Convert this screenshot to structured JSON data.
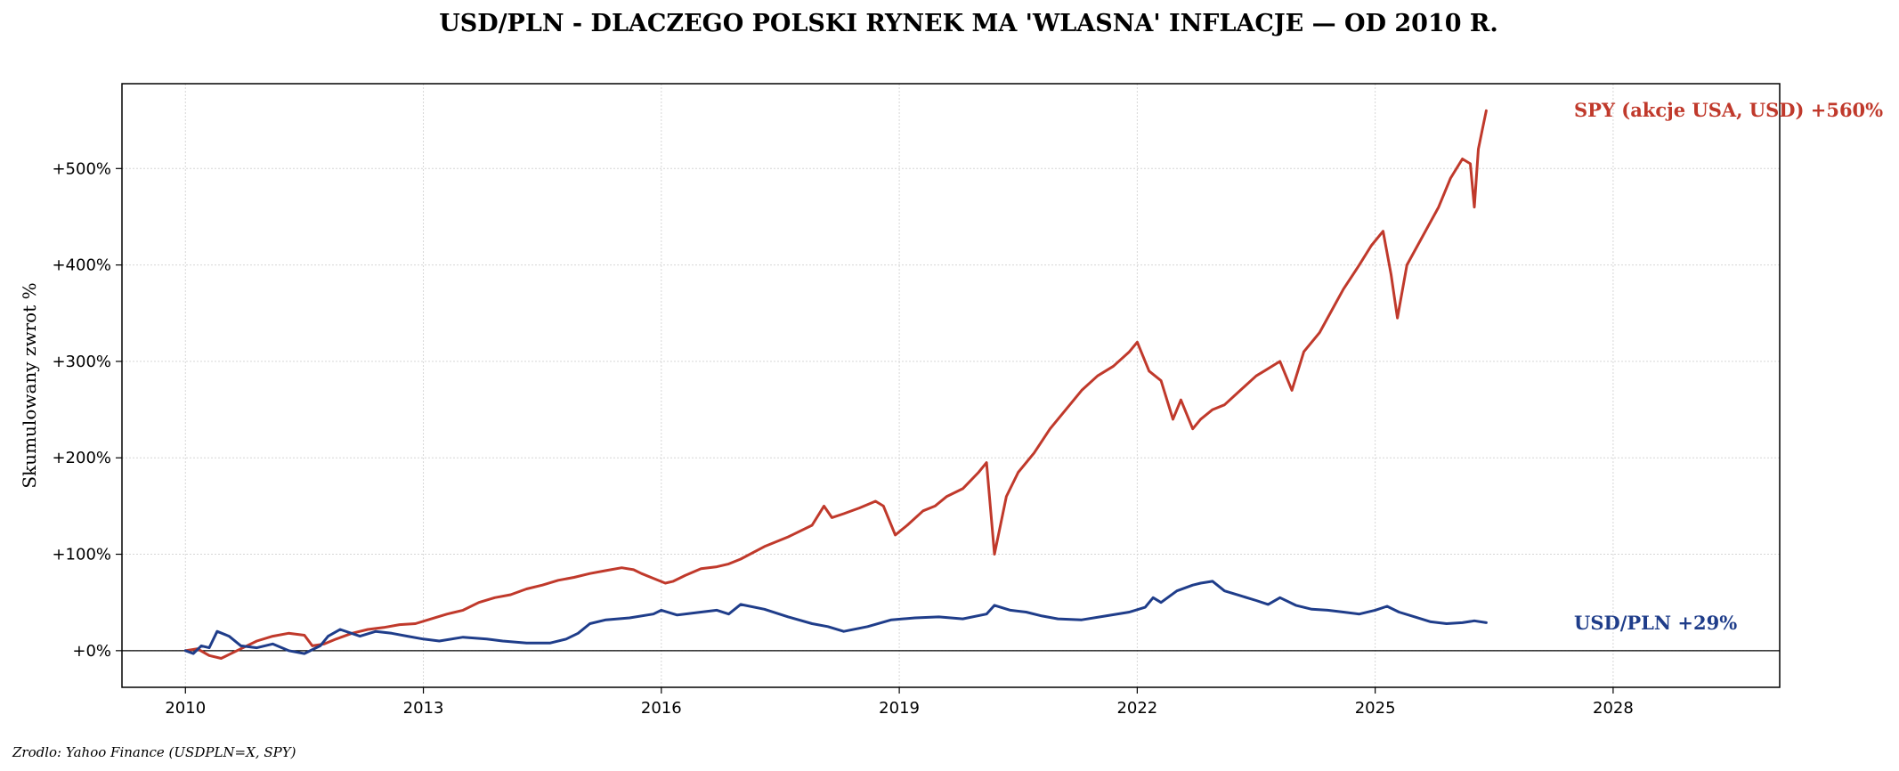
{
  "chart_data": {
    "type": "line",
    "title": "USD/PLN - DLACZEGO POLSKI RYNEK MA 'WLASNA' INFLACJE — OD 2010 R.",
    "ylabel": "Skumulowany zwrot %",
    "xlabel": "",
    "xlim": [
      2009.2,
      2030.1
    ],
    "ylim": [
      -38,
      588
    ],
    "x_ticks": [
      2010,
      2013,
      2016,
      2019,
      2022,
      2025,
      2028
    ],
    "x_tick_labels": [
      "2010",
      "2013",
      "2016",
      "2019",
      "2022",
      "2025",
      "2028"
    ],
    "y_ticks": [
      0,
      100,
      200,
      300,
      400,
      500
    ],
    "y_tick_labels": [
      "+0%",
      "+100%",
      "+200%",
      "+300%",
      "+400%",
      "+500%"
    ],
    "grid": true,
    "zero_line": true,
    "series": [
      {
        "label": "SPY (akcje USA, USD)  +560%",
        "color": "#c0392b",
        "x": [
          2010.0,
          2010.15,
          2010.3,
          2010.45,
          2010.55,
          2010.7,
          2010.9,
          2011.1,
          2011.3,
          2011.5,
          2011.6,
          2011.75,
          2011.9,
          2012.1,
          2012.3,
          2012.5,
          2012.7,
          2012.9,
          2013.1,
          2013.3,
          2013.5,
          2013.7,
          2013.9,
          2014.1,
          2014.3,
          2014.5,
          2014.7,
          2014.9,
          2015.1,
          2015.3,
          2015.5,
          2015.65,
          2015.75,
          2015.9,
          2016.05,
          2016.15,
          2016.3,
          2016.5,
          2016.7,
          2016.85,
          2017.0,
          2017.3,
          2017.6,
          2017.9,
          2018.05,
          2018.15,
          2018.3,
          2018.5,
          2018.7,
          2018.8,
          2018.95,
          2019.1,
          2019.3,
          2019.45,
          2019.6,
          2019.8,
          2020.0,
          2020.1,
          2020.2,
          2020.35,
          2020.5,
          2020.7,
          2020.9,
          2021.1,
          2021.3,
          2021.5,
          2021.7,
          2021.9,
          2022.0,
          2022.15,
          2022.3,
          2022.45,
          2022.55,
          2022.7,
          2022.8,
          2022.95,
          2023.1,
          2023.3,
          2023.5,
          2023.6,
          2023.8,
          2023.95,
          2024.1,
          2024.3,
          2024.5,
          2024.6,
          2024.8,
          2024.95,
          2025.1,
          2025.2,
          2025.28,
          2025.4,
          2025.6,
          2025.8,
          2025.95,
          2026.1,
          2026.2,
          2026.25,
          2026.3,
          2026.35,
          2026.4
        ],
        "y": [
          0,
          2,
          -5,
          -8,
          -4,
          2,
          10,
          15,
          18,
          16,
          5,
          7,
          12,
          18,
          22,
          24,
          27,
          28,
          33,
          38,
          42,
          50,
          55,
          58,
          64,
          68,
          73,
          76,
          80,
          83,
          86,
          84,
          80,
          75,
          70,
          72,
          78,
          85,
          87,
          90,
          95,
          108,
          118,
          130,
          150,
          138,
          142,
          148,
          155,
          150,
          120,
          130,
          145,
          150,
          160,
          168,
          185,
          195,
          100,
          160,
          185,
          205,
          230,
          250,
          270,
          285,
          295,
          310,
          320,
          290,
          280,
          240,
          260,
          230,
          240,
          250,
          255,
          270,
          285,
          290,
          300,
          270,
          310,
          330,
          360,
          375,
          400,
          420,
          435,
          390,
          345,
          400,
          430,
          460,
          490,
          510,
          505,
          460,
          520,
          540,
          560
        ]
      },
      {
        "label": "USD/PLN  +29%",
        "color": "#1f3d8a",
        "x": [
          2010.0,
          2010.1,
          2010.2,
          2010.3,
          2010.4,
          2010.55,
          2010.7,
          2010.9,
          2011.1,
          2011.3,
          2011.5,
          2011.7,
          2011.8,
          2011.95,
          2012.2,
          2012.4,
          2012.6,
          2012.8,
          2013.0,
          2013.2,
          2013.5,
          2013.8,
          2014.0,
          2014.3,
          2014.6,
          2014.8,
          2014.95,
          2015.1,
          2015.3,
          2015.6,
          2015.9,
          2016.0,
          2016.2,
          2016.5,
          2016.7,
          2016.85,
          2017.0,
          2017.3,
          2017.6,
          2017.9,
          2018.1,
          2018.3,
          2018.6,
          2018.9,
          2019.2,
          2019.5,
          2019.8,
          2020.1,
          2020.2,
          2020.4,
          2020.6,
          2020.8,
          2021.0,
          2021.3,
          2021.6,
          2021.9,
          2022.1,
          2022.2,
          2022.3,
          2022.5,
          2022.7,
          2022.8,
          2022.95,
          2023.1,
          2023.3,
          2023.5,
          2023.65,
          2023.8,
          2024.0,
          2024.2,
          2024.4,
          2024.6,
          2024.8,
          2025.0,
          2025.15,
          2025.3,
          2025.5,
          2025.7,
          2025.9,
          2026.1,
          2026.25,
          2026.4
        ],
        "y": [
          0,
          -3,
          5,
          3,
          20,
          15,
          5,
          3,
          7,
          0,
          -3,
          5,
          15,
          22,
          15,
          20,
          18,
          15,
          12,
          10,
          14,
          12,
          10,
          8,
          8,
          12,
          18,
          28,
          32,
          34,
          38,
          42,
          37,
          40,
          42,
          38,
          48,
          43,
          35,
          28,
          25,
          20,
          25,
          32,
          34,
          35,
          33,
          38,
          47,
          42,
          40,
          36,
          33,
          32,
          36,
          40,
          45,
          55,
          50,
          62,
          68,
          70,
          72,
          62,
          57,
          52,
          48,
          55,
          47,
          43,
          42,
          40,
          38,
          42,
          46,
          40,
          35,
          30,
          28,
          29,
          31,
          29
        ]
      }
    ],
    "source": "Zrodlo: Yahoo Finance (USDPLN=X, SPY)"
  }
}
